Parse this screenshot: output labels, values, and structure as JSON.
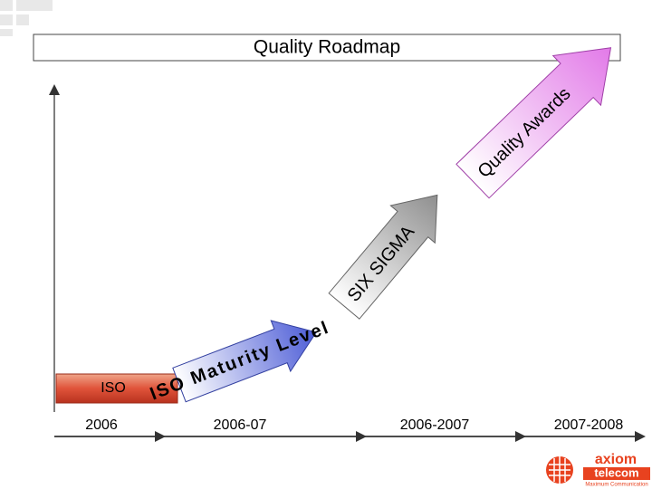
{
  "header": {
    "title": "Quality Roadmap"
  },
  "start_box": {
    "label": "ISO"
  },
  "steps": [
    {
      "label": "ISO Maturity Level"
    },
    {
      "label": "SIX SIGMA"
    },
    {
      "label": "Quality Awards"
    }
  ],
  "timeline": [
    "2006",
    "2006-07",
    "2006-2007",
    "2007-2008"
  ],
  "logo": {
    "name": "axiom",
    "sub": "telecom",
    "tagline": "Maximum Communication"
  }
}
